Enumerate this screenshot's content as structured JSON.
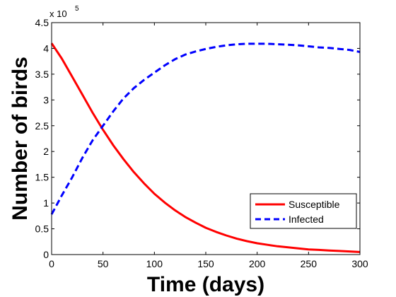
{
  "chart_data": {
    "type": "line",
    "title": "",
    "xlabel": "Time (days)",
    "ylabel": "Number of birds",
    "y_multiplier": {
      "base": "x 10",
      "exponent": "5"
    },
    "xlim": [
      0,
      300
    ],
    "ylim": [
      0,
      450000
    ],
    "xticks": [
      0,
      50,
      100,
      150,
      200,
      250,
      300
    ],
    "xtick_labels": [
      "0",
      "50",
      "100",
      "150",
      "200",
      "250",
      "300"
    ],
    "yticks": [
      0,
      50000,
      100000,
      150000,
      200000,
      250000,
      300000,
      350000,
      400000,
      450000
    ],
    "ytick_labels": [
      "0",
      "0.5",
      "1",
      "1.5",
      "2",
      "2.5",
      "3",
      "3.5",
      "4",
      "4.5"
    ],
    "grid": false,
    "legend": "bottom-right",
    "series": [
      {
        "name": "Susceptible",
        "color": "#ff0000",
        "style": "solid",
        "x": [
          0,
          10,
          20,
          30,
          40,
          50,
          60,
          70,
          80,
          90,
          100,
          110,
          120,
          130,
          140,
          150,
          160,
          170,
          180,
          190,
          200,
          210,
          220,
          230,
          240,
          250,
          260,
          270,
          280,
          290,
          300
        ],
        "y": [
          410000,
          380000,
          345000,
          310000,
          275000,
          242000,
          212000,
          185000,
          160000,
          138000,
          118000,
          101000,
          86000,
          73000,
          62000,
          52000,
          44000,
          37000,
          31000,
          26000,
          22000,
          19000,
          16000,
          14000,
          12000,
          10000,
          9000,
          8000,
          7000,
          6000,
          5000
        ]
      },
      {
        "name": "Infected",
        "color": "#0000ff",
        "style": "dashed",
        "x": [
          0,
          10,
          20,
          30,
          40,
          50,
          60,
          70,
          80,
          90,
          100,
          110,
          120,
          130,
          140,
          150,
          160,
          170,
          180,
          190,
          200,
          210,
          220,
          230,
          240,
          250,
          260,
          270,
          280,
          290,
          300
        ],
        "y": [
          78000,
          115000,
          150000,
          188000,
          222000,
          250000,
          278000,
          303000,
          323000,
          339000,
          353000,
          367000,
          379000,
          388000,
          394000,
          399000,
          403000,
          406000,
          408000,
          409000,
          409000,
          409000,
          408000,
          407000,
          406000,
          404000,
          402000,
          401000,
          399000,
          397000,
          393000
        ]
      }
    ]
  }
}
